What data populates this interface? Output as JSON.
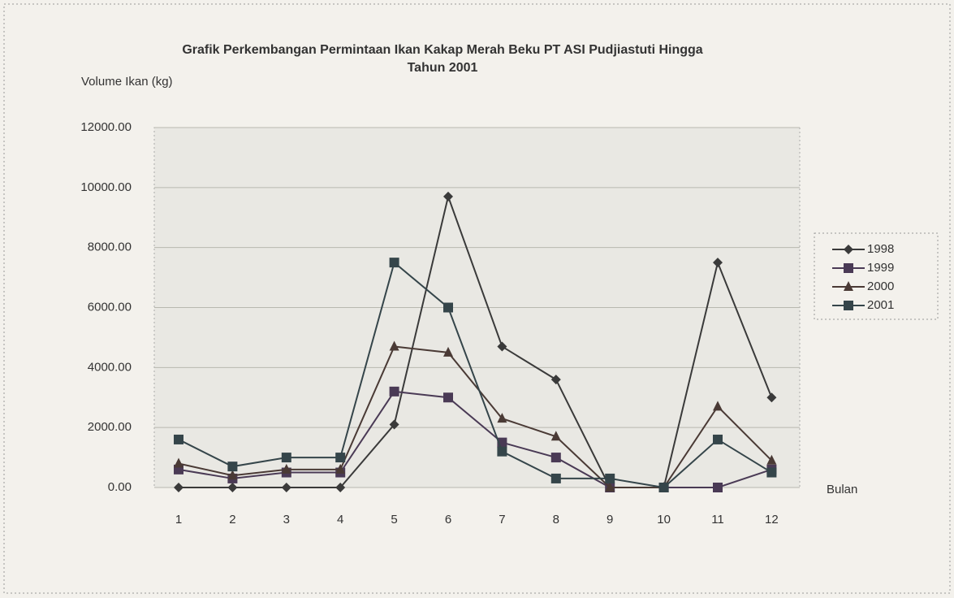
{
  "chart_data": {
    "type": "line",
    "title": [
      "Grafik Perkembangan Permintaan  Ikan Kakap Merah Beku PT ASI Pudjiastuti Hingga",
      "Tahun 2001"
    ],
    "y_label": "Volume Ikan (kg)",
    "x_label": "Bulan",
    "categories": [
      "1",
      "2",
      "3",
      "4",
      "5",
      "6",
      "7",
      "8",
      "9",
      "10",
      "11",
      "12"
    ],
    "series": [
      {
        "name": "1998",
        "color": "#3a3a3a",
        "marker": "diamond",
        "values": [
          0,
          0,
          0,
          0,
          2100,
          9700,
          4700,
          3600,
          0,
          0,
          7500,
          3000
        ]
      },
      {
        "name": "1999",
        "color": "#4a3a55",
        "marker": "square",
        "values": [
          600,
          300,
          500,
          500,
          3200,
          3000,
          1500,
          1000,
          0,
          0,
          0,
          600
        ]
      },
      {
        "name": "2000",
        "color": "#4a3a35",
        "marker": "triangle",
        "values": [
          800,
          400,
          600,
          600,
          4700,
          4500,
          2300,
          1700,
          0,
          0,
          2700,
          900
        ]
      },
      {
        "name": "2001",
        "color": "#35454a",
        "marker": "square",
        "values": [
          1600,
          700,
          1000,
          1000,
          7500,
          6000,
          1200,
          300,
          300,
          0,
          1600,
          500
        ]
      }
    ],
    "ylim": [
      0,
      12000
    ],
    "yticks": [
      {
        "value": 0,
        "label": "0.00"
      },
      {
        "value": 2000,
        "label": "2000.00"
      },
      {
        "value": 4000,
        "label": "4000.00"
      },
      {
        "value": 6000,
        "label": "6000.00"
      },
      {
        "value": 8000,
        "label": "8000.00"
      },
      {
        "value": 10000,
        "label": "10000.00"
      },
      {
        "value": 12000,
        "label": "12000.00"
      }
    ],
    "grid": true,
    "legend": "right"
  }
}
